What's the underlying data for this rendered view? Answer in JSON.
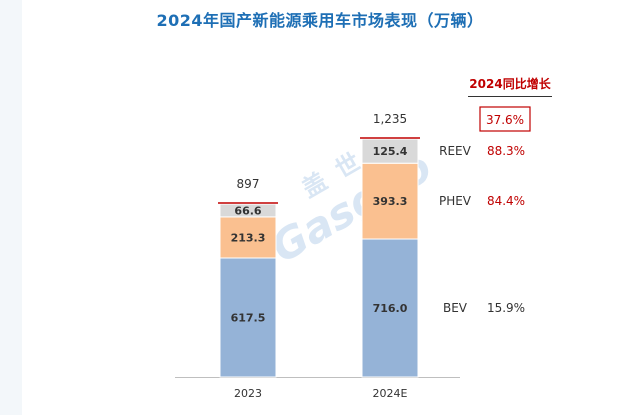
{
  "title": "2024年国产新能源乘用车市场表现（万辆）",
  "growth_header": "2024同比增长",
  "watermark": {
    "cn": "盖 世",
    "en": "Gasgoo"
  },
  "chart_data": {
    "type": "stacked_bar",
    "title": "2024年国产新能源乘用车市场表现（万辆）",
    "categories": [
      "2023",
      "2024E"
    ],
    "series": [
      {
        "name": "BEV",
        "values": [
          617.5,
          716.0
        ],
        "labels": [
          "617.5",
          "716.0"
        ],
        "color": "#95b3d7"
      },
      {
        "name": "PHEV",
        "values": [
          213.3,
          393.3
        ],
        "labels": [
          "213.3",
          "393.3"
        ],
        "color": "#fac090"
      },
      {
        "name": "REEV",
        "values": [
          66.6,
          125.4
        ],
        "labels": [
          "66.6",
          "125.4"
        ],
        "color": "#d9d9d9"
      }
    ],
    "totals": [
      897,
      1235
    ],
    "total_labels": [
      "897",
      "1,235"
    ],
    "growth": [
      {
        "series": "REEV",
        "value": "88.3%"
      },
      {
        "series": "PHEV",
        "value": "84.4%"
      },
      {
        "series": "BEV",
        "value": "15.9%"
      },
      {
        "series": "Total",
        "value": "37.6%"
      }
    ],
    "ylim": [
      0,
      1235
    ],
    "xlabel": "",
    "ylabel": ""
  }
}
